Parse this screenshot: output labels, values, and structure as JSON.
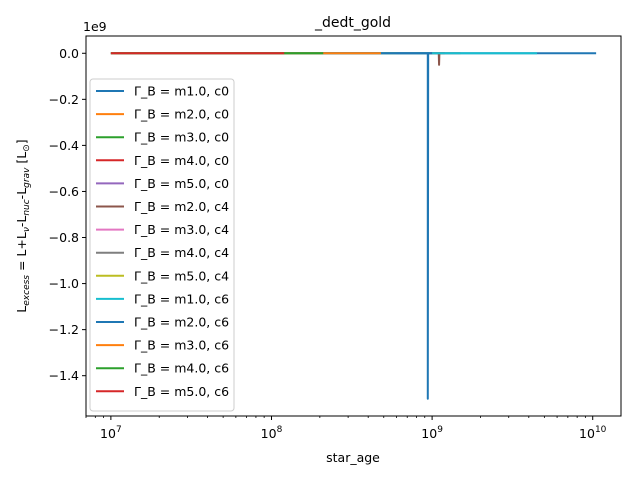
{
  "chart_data": {
    "type": "line",
    "title": "_dedt_gold",
    "xlabel": "star_age",
    "ylabel": "L_excess = L+L_ν-L_nuc-L_grav [L_⊙]",
    "y_multiplier": "1e9",
    "x_scale": "log",
    "xlim": [
      7000000,
      15000000000
    ],
    "ylim": [
      -1.575,
      0.075
    ],
    "x_ticks": [
      10000000,
      100000000,
      1000000000,
      10000000000
    ],
    "x_tick_labels": [
      {
        "base": "10",
        "exp": "7"
      },
      {
        "base": "10",
        "exp": "8"
      },
      {
        "base": "10",
        "exp": "9"
      },
      {
        "base": "10",
        "exp": "10"
      }
    ],
    "y_ticks": [
      0.0,
      -0.2,
      -0.4,
      -0.6,
      -0.8,
      -1.0,
      -1.2,
      -1.4
    ],
    "y_tick_labels": [
      "0.0",
      "−0.2",
      "−0.4",
      "−0.6",
      "−0.8",
      "−1.0",
      "−1.2",
      "−1.4"
    ],
    "legend_position": "left",
    "grid": false,
    "series": [
      {
        "name": "Γ_B = m1.0, c0",
        "color": "#1f77b4",
        "x": [
          11000000,
          1000000000,
          10500000000
        ],
        "y": [
          0,
          0,
          0
        ]
      },
      {
        "name": "Γ_B = m2.0, c0",
        "color": "#ff7f0e",
        "x": [
          11000000,
          480000000
        ],
        "y": [
          0,
          0
        ]
      },
      {
        "name": "Γ_B = m3.0, c0",
        "color": "#2ca02c",
        "x": [
          11000000,
          210000000
        ],
        "y": [
          0,
          0
        ]
      },
      {
        "name": "Γ_B = m4.0, c0",
        "color": "#d62728",
        "x": [
          11000000,
          120000000
        ],
        "y": [
          0,
          0
        ]
      },
      {
        "name": "Γ_B = m5.0, c0",
        "color": "#9467bd",
        "x": [
          11000000,
          80000000
        ],
        "y": [
          0,
          0
        ]
      },
      {
        "name": "Γ_B = m2.0, c4",
        "color": "#8c564b",
        "x": [
          10500000,
          1100000000,
          1105000000,
          1110000000,
          1115000000,
          1200000000
        ],
        "y": [
          0,
          0,
          -0.05,
          0,
          0,
          0
        ]
      },
      {
        "name": "Γ_B = m3.0, c4",
        "color": "#e377c2",
        "x": [
          10500000,
          800000000
        ],
        "y": [
          0,
          0
        ]
      },
      {
        "name": "Γ_B = m4.0, c4",
        "color": "#7f7f7f",
        "x": [
          10500000,
          1500000000
        ],
        "y": [
          0,
          0
        ]
      },
      {
        "name": "Γ_B = m5.0, c4",
        "color": "#bcbd22",
        "x": [
          10500000,
          600000000
        ],
        "y": [
          0,
          0
        ]
      },
      {
        "name": "Γ_B = m1.0, c6",
        "color": "#17becf",
        "x": [
          10000000,
          4500000000
        ],
        "y": [
          0,
          0
        ]
      },
      {
        "name": "Γ_B = m2.0, c6",
        "color": "#1f77b4",
        "x": [
          10000000,
          940000000,
          940000000,
          945000000,
          950000000,
          1000000000
        ],
        "y": [
          0,
          0,
          -1.5,
          0,
          0,
          0
        ]
      },
      {
        "name": "Γ_B = m3.0, c6",
        "color": "#ff7f0e",
        "x": [
          10000000,
          480000000
        ],
        "y": [
          0,
          0
        ]
      },
      {
        "name": "Γ_B = m4.0, c6",
        "color": "#2ca02c",
        "x": [
          10000000,
          210000000
        ],
        "y": [
          0,
          0
        ]
      },
      {
        "name": "Γ_B = m5.0, c6",
        "color": "#d62728",
        "x": [
          10000000,
          120000000
        ],
        "y": [
          0,
          0
        ]
      }
    ]
  }
}
